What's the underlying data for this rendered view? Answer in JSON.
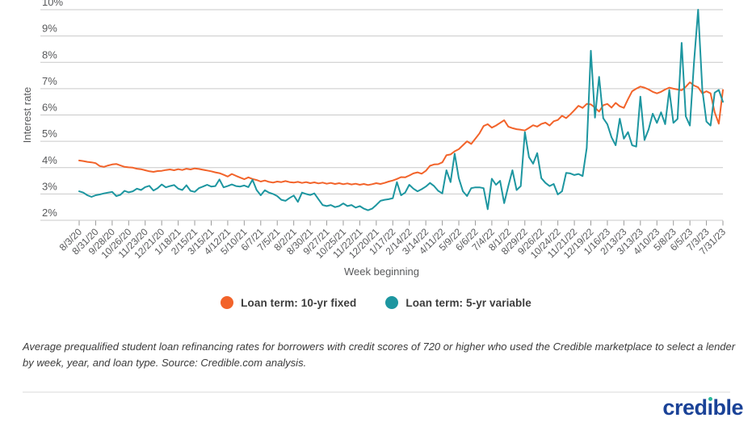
{
  "chart_data": {
    "type": "line",
    "title": "",
    "xlabel": "Week beginning",
    "ylabel": "Interest rate",
    "ylim": [
      2,
      10
    ],
    "grid": true,
    "legend_position": "bottom",
    "y_tick_labels": [
      "10%",
      "9%",
      "8%",
      "7%",
      "6%",
      "5%",
      "4%",
      "3%",
      "2%"
    ],
    "x_tick_every_n_points": 4,
    "x_tick_labels": [
      "8/3/20",
      "8/31/20",
      "9/28/20",
      "10/26/20",
      "11/23/20",
      "12/21/20",
      "1/18/21",
      "2/15/21",
      "3/15/21",
      "4/12/21",
      "5/10/21",
      "6/7/21",
      "7/5/21",
      "8/2/21",
      "8/30/21",
      "9/27/21",
      "10/25/21",
      "11/22/21",
      "12/20/21",
      "1/17/22",
      "2/14/22",
      "3/14/22",
      "4/11/22",
      "5/9/22",
      "6/6/22",
      "7/4/22",
      "8/1/22",
      "8/29/22",
      "9/26/22",
      "10/24/22",
      "11/21/22",
      "12/19/22",
      "1/16/23",
      "2/13/23",
      "3/13/23",
      "4/10/23",
      "5/8/23",
      "6/5/23",
      "7/3/23",
      "7/31/23"
    ],
    "series": [
      {
        "name": "Loan term: 10-yr fixed",
        "color": "#f2632a",
        "values": [
          4.27,
          4.25,
          4.22,
          4.2,
          4.17,
          4.06,
          4.03,
          4.08,
          4.12,
          4.14,
          4.08,
          4.03,
          4.01,
          4.0,
          3.96,
          3.94,
          3.9,
          3.86,
          3.84,
          3.87,
          3.88,
          3.91,
          3.93,
          3.9,
          3.94,
          3.91,
          3.96,
          3.93,
          3.97,
          3.95,
          3.92,
          3.89,
          3.86,
          3.82,
          3.79,
          3.73,
          3.66,
          3.76,
          3.69,
          3.62,
          3.56,
          3.63,
          3.57,
          3.53,
          3.47,
          3.51,
          3.46,
          3.43,
          3.47,
          3.45,
          3.49,
          3.45,
          3.43,
          3.46,
          3.42,
          3.45,
          3.41,
          3.44,
          3.4,
          3.43,
          3.39,
          3.42,
          3.38,
          3.41,
          3.37,
          3.4,
          3.36,
          3.39,
          3.35,
          3.38,
          3.34,
          3.37,
          3.41,
          3.38,
          3.42,
          3.47,
          3.51,
          3.57,
          3.64,
          3.63,
          3.7,
          3.78,
          3.82,
          3.77,
          3.88,
          4.07,
          4.12,
          4.13,
          4.2,
          4.47,
          4.5,
          4.62,
          4.7,
          4.85,
          5.0,
          4.9,
          5.1,
          5.3,
          5.58,
          5.65,
          5.52,
          5.6,
          5.7,
          5.8,
          5.56,
          5.5,
          5.46,
          5.44,
          5.41,
          5.51,
          5.61,
          5.56,
          5.66,
          5.71,
          5.6,
          5.76,
          5.81,
          5.97,
          5.88,
          6.02,
          6.18,
          6.35,
          6.27,
          6.42,
          6.4,
          6.28,
          6.13,
          6.37,
          6.42,
          6.28,
          6.46,
          6.33,
          6.27,
          6.6,
          6.9,
          7.0,
          7.08,
          7.04,
          6.97,
          6.88,
          6.82,
          6.88,
          6.97,
          7.04,
          7.0,
          6.97,
          6.94,
          7.07,
          7.24,
          7.12,
          7.05,
          6.82,
          6.9,
          6.82,
          6.1,
          5.67,
          6.95
        ]
      },
      {
        "name": "Loan term: 5-yr variable",
        "color": "#1d96a0",
        "values": [
          3.1,
          3.05,
          2.95,
          2.89,
          2.95,
          2.98,
          3.02,
          3.05,
          3.08,
          2.92,
          2.97,
          3.12,
          3.06,
          3.1,
          3.2,
          3.15,
          3.26,
          3.31,
          3.13,
          3.22,
          3.36,
          3.25,
          3.3,
          3.34,
          3.2,
          3.15,
          3.33,
          3.12,
          3.08,
          3.22,
          3.28,
          3.35,
          3.28,
          3.3,
          3.55,
          3.25,
          3.3,
          3.36,
          3.3,
          3.28,
          3.32,
          3.26,
          3.54,
          3.15,
          2.95,
          3.14,
          3.05,
          3.0,
          2.92,
          2.78,
          2.74,
          2.85,
          2.94,
          2.7,
          3.05,
          3.0,
          2.96,
          3.02,
          2.8,
          2.58,
          2.54,
          2.58,
          2.5,
          2.54,
          2.64,
          2.54,
          2.58,
          2.48,
          2.54,
          2.44,
          2.38,
          2.44,
          2.58,
          2.74,
          2.78,
          2.8,
          2.84,
          3.45,
          2.95,
          3.05,
          3.35,
          3.2,
          3.1,
          3.18,
          3.28,
          3.42,
          3.3,
          3.12,
          3.02,
          3.9,
          3.45,
          4.53,
          3.6,
          3.1,
          2.92,
          3.22,
          3.25,
          3.25,
          3.22,
          2.42,
          3.58,
          3.35,
          3.5,
          2.65,
          3.3,
          3.9,
          3.15,
          3.3,
          5.35,
          4.4,
          4.15,
          4.55,
          3.6,
          3.42,
          3.3,
          3.38,
          2.98,
          3.1,
          3.8,
          3.78,
          3.72,
          3.76,
          3.68,
          4.75,
          8.44,
          5.9,
          7.45,
          5.88,
          5.65,
          5.15,
          4.85,
          5.86,
          5.1,
          5.35,
          4.85,
          4.8,
          6.7,
          5.05,
          5.45,
          6.05,
          5.7,
          6.1,
          5.65,
          6.95,
          5.7,
          5.85,
          8.74,
          5.95,
          5.6,
          8.0,
          10.0,
          6.96,
          5.75,
          5.6,
          6.85,
          6.95,
          6.5
        ]
      }
    ],
    "style": {
      "gridline_color": "#c9c9c9",
      "tick_color": "#9a9a9a",
      "axis_text_color": "#58595b",
      "line_width": 2
    }
  },
  "footnote": "Average prequalified student loan refinancing rates for borrowers with credit scores of 720 or higher who used the Credible marketplace to select a lender by week, year, and loan type. Source: Credible.com analysis.",
  "logo": {
    "text": "credible",
    "pre": "cred",
    "dotless_i": "ı",
    "post": "ble",
    "brand_color": "#1a4297",
    "accent_color": "#2ab99b"
  }
}
